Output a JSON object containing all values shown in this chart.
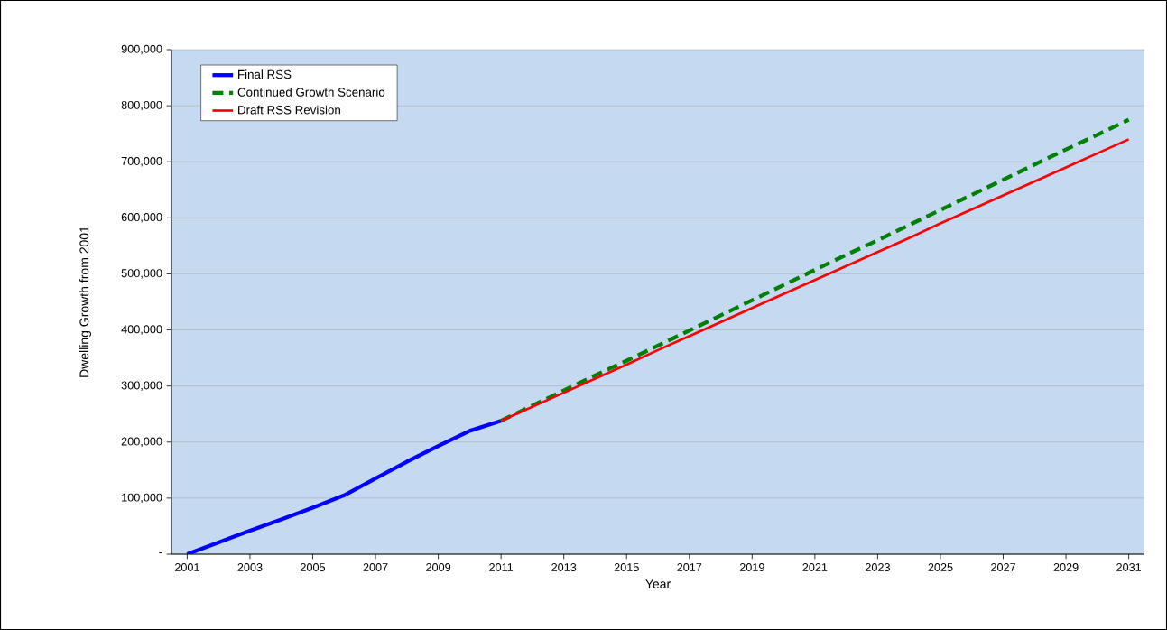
{
  "chart_data": {
    "type": "line",
    "xlabel": "Year",
    "ylabel": "Dwelling Growth from 2001",
    "xlim": [
      2000.5,
      2031.5
    ],
    "xticks": [
      2001,
      2003,
      2005,
      2007,
      2009,
      2011,
      2013,
      2015,
      2017,
      2019,
      2021,
      2023,
      2025,
      2027,
      2029,
      2031
    ],
    "ylim": [
      0,
      900000
    ],
    "yticks": [
      {
        "value": 0,
        "label": "-"
      },
      {
        "value": 100000,
        "label": "100,000"
      },
      {
        "value": 200000,
        "label": "200,000"
      },
      {
        "value": 300000,
        "label": "300,000"
      },
      {
        "value": 400000,
        "label": "400,000"
      },
      {
        "value": 500000,
        "label": "500,000"
      },
      {
        "value": 600000,
        "label": "600,000"
      },
      {
        "value": 700000,
        "label": "700,000"
      },
      {
        "value": 800000,
        "label": "800,000"
      },
      {
        "value": 900000,
        "label": "900,000"
      }
    ],
    "grid": "y",
    "legend": "top left",
    "series": [
      {
        "name": "Final RSS",
        "color": "#0000ff",
        "line_style": "solid",
        "x": [
          2001,
          2002,
          2003,
          2004,
          2005,
          2006,
          2007,
          2008,
          2009,
          2010,
          2011
        ],
        "values": [
          0,
          21000,
          42000,
          62000,
          83000,
          105000,
          135000,
          165000,
          193000,
          220000,
          238000
        ]
      },
      {
        "name": "Continued Growth Scenario",
        "color": "#008000",
        "line_style": "dashed",
        "x": [
          2011,
          2012,
          2013,
          2014,
          2015,
          2016,
          2017,
          2018,
          2019,
          2020,
          2021,
          2022,
          2023,
          2024,
          2025,
          2026,
          2027,
          2028,
          2029,
          2030,
          2031
        ],
        "values": [
          238000,
          265000,
          292000,
          319000,
          345000,
          372000,
          399000,
          426000,
          453000,
          480000,
          507000,
          534000,
          560000,
          587000,
          614000,
          641000,
          668000,
          695000,
          722000,
          748000,
          775000
        ]
      },
      {
        "name": "Draft RSS Revision",
        "color": "#ff0000",
        "line_style": "solid",
        "x": [
          2011,
          2012,
          2013,
          2014,
          2015,
          2016,
          2017,
          2018,
          2019,
          2020,
          2021,
          2022,
          2023,
          2024,
          2025,
          2026,
          2027,
          2028,
          2029,
          2030,
          2031
        ],
        "values": [
          238000,
          263000,
          288000,
          313000,
          338000,
          364000,
          389000,
          414000,
          439000,
          464000,
          489000,
          514000,
          539000,
          564000,
          590000,
          615000,
          640000,
          665000,
          690000,
          715000,
          740000
        ]
      }
    ]
  }
}
